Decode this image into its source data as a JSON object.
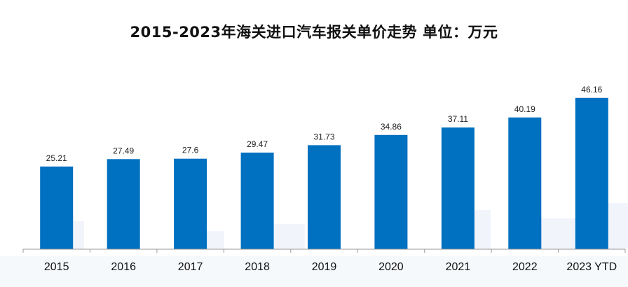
{
  "chart_data": {
    "type": "bar",
    "title": "2015-2023年海关进口汽车报关单价走势 单位：万元",
    "categories": [
      "2015",
      "2016",
      "2017",
      "2018",
      "2019",
      "2020",
      "2021",
      "2022",
      "2023 YTD"
    ],
    "values": [
      25.21,
      27.49,
      27.6,
      29.47,
      31.73,
      34.86,
      37.11,
      40.19,
      46.16
    ],
    "value_labels": [
      "25.21",
      "27.49",
      "27.6",
      "29.47",
      "31.73",
      "34.86",
      "37.11",
      "40.19",
      "46.16"
    ],
    "xlabel": "",
    "ylabel": "",
    "ylim": [
      0,
      50
    ],
    "grid": false,
    "legend": "none",
    "bar_color": "#0070C0",
    "axis_color": "#9a9a9a",
    "background_pattern_color": "#eef3fa"
  }
}
